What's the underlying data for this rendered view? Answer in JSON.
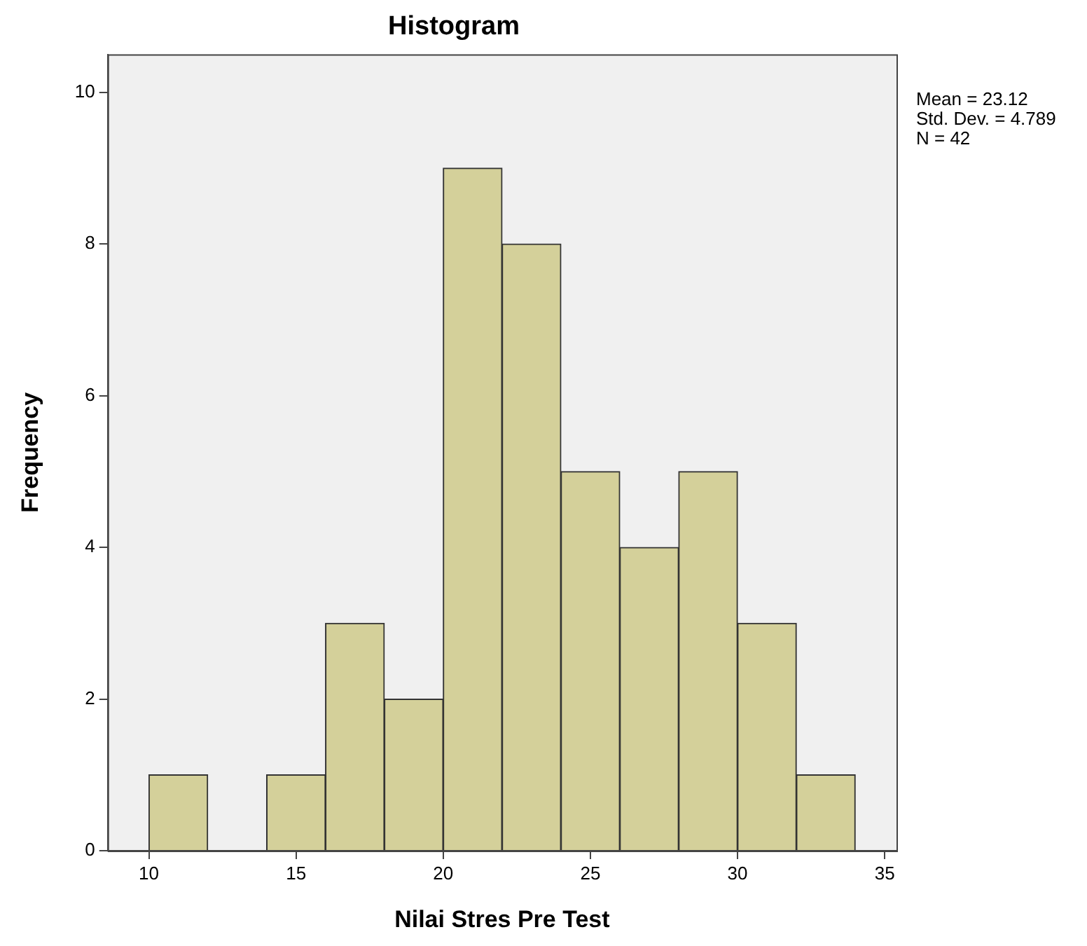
{
  "chart_data": {
    "type": "histogram",
    "title": "Histogram",
    "xlabel": "Nilai Stres Pre Test",
    "ylabel": "Frequency",
    "bins": [
      10,
      12,
      14,
      16,
      18,
      20,
      22,
      24,
      26,
      28,
      30,
      32,
      34
    ],
    "values": [
      1,
      0,
      1,
      3,
      2,
      9,
      8,
      5,
      4,
      5,
      3,
      1
    ],
    "color": "#d4d09a",
    "xlim": [
      8.6,
      35.4
    ],
    "xticks": [
      10,
      15,
      20,
      25,
      30,
      35
    ],
    "ylim": [
      0,
      10.5
    ],
    "yticks": [
      0,
      2,
      4,
      6,
      8,
      10
    ],
    "grid": false,
    "legend": false,
    "annotations": [
      "Mean = 23.12",
      "Std. Dev. = 4.789",
      "N = 42"
    ]
  }
}
